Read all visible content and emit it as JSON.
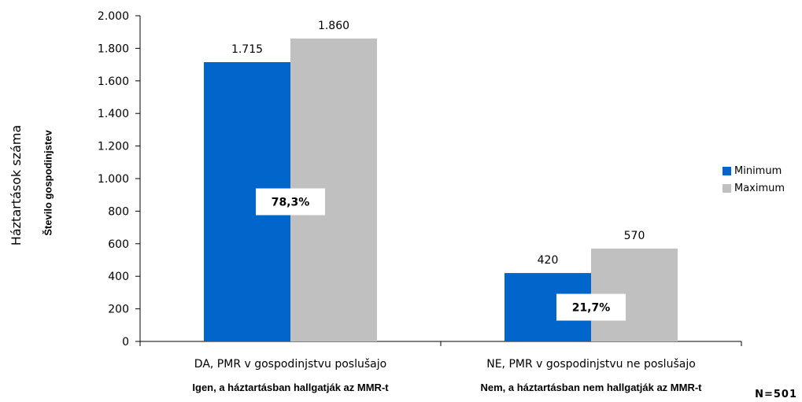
{
  "chart_data": {
    "type": "bar",
    "categories": [
      "DA, PMR v gospodinjstvu poslušajo",
      "NE, PMR v gospodinjstvu ne poslušajo"
    ],
    "category_sublabels": [
      "Igen, a háztartásban hallgatják az MMR-t",
      "Nem, a háztartásban nem hallgatják az MMR-t"
    ],
    "series": [
      {
        "name": "Minimum",
        "values": [
          1715,
          420
        ],
        "value_labels": [
          "1.715",
          "420"
        ]
      },
      {
        "name": "Maximum",
        "values": [
          1860,
          570
        ],
        "value_labels": [
          "1.860",
          "570"
        ]
      }
    ],
    "share_labels": [
      "78,3%",
      "21,7%"
    ],
    "ylabel": "Háztartások száma",
    "ylabel_sub": "Število gospodinjstev",
    "ylim": [
      0,
      2000
    ],
    "yticks": [
      0,
      200,
      400,
      600,
      800,
      1000,
      1200,
      1400,
      1600,
      1800,
      2000
    ],
    "ytick_labels": [
      "0",
      "200",
      "400",
      "600",
      "800",
      "1.000",
      "1.200",
      "1.400",
      "1.600",
      "1.800",
      "2.000"
    ],
    "grid": false,
    "legend_position": "right",
    "colors": {
      "Minimum": "#0066cc",
      "Maximum": "#c0c0c0"
    },
    "note": "N=501"
  }
}
